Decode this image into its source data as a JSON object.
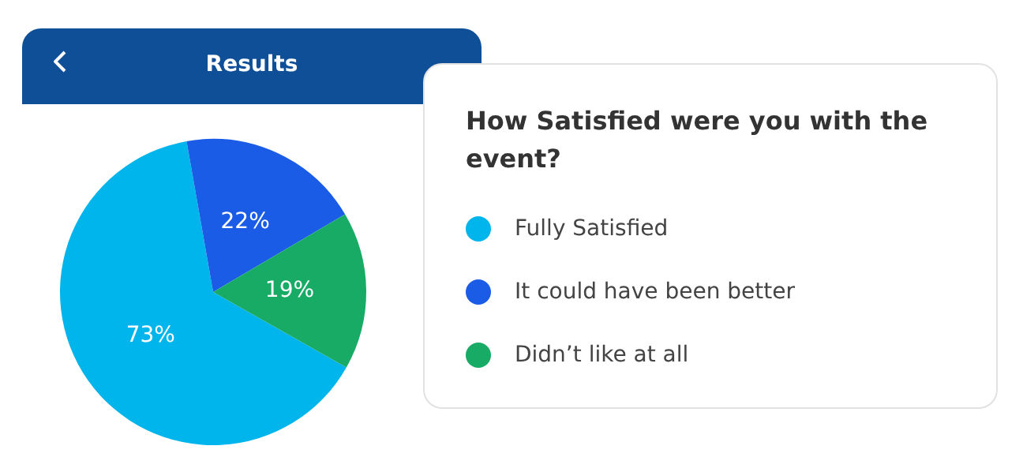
{
  "chart_data": {
    "type": "pie",
    "title": "Results",
    "legend_title": "How Satisfied were you with the event?",
    "categories": [
      "Fully Satisfied",
      "It could have been better",
      "Didn’t like at all"
    ],
    "values": [
      73,
      22,
      19
    ],
    "value_labels": [
      "73%",
      "22%",
      "19%"
    ],
    "colors": [
      "#00b5eb",
      "#1b5ce6",
      "#18ab66"
    ],
    "legend": "right"
  }
}
